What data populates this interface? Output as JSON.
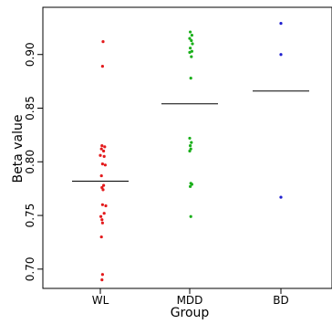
{
  "chart_data": {
    "type": "scatter",
    "xlabel": "Group",
    "ylabel": "Beta value",
    "categories": [
      "WL",
      "MDD",
      "BD"
    ],
    "y_ticks": [
      0.7,
      0.75,
      0.8,
      0.85,
      0.9
    ],
    "y_tick_labels": [
      "0.70",
      "0.75",
      "0.80",
      "0.85",
      "0.90"
    ],
    "ylim": [
      0.682,
      0.944
    ],
    "grid": false,
    "legend": "none",
    "series": [
      {
        "category": "WL",
        "color": "#e31a1c",
        "mean": 0.782,
        "points": [
          {
            "dx": 0.05,
            "y": 0.912
          },
          {
            "dx": 0.04,
            "y": 0.889
          },
          {
            "dx": 0.03,
            "y": 0.815
          },
          {
            "dx": 0.08,
            "y": 0.814
          },
          {
            "dx": 0.02,
            "y": 0.812
          },
          {
            "dx": 0.06,
            "y": 0.81
          },
          {
            "dx": 0.0,
            "y": 0.806
          },
          {
            "dx": 0.07,
            "y": 0.805
          },
          {
            "dx": 0.04,
            "y": 0.798
          },
          {
            "dx": 0.09,
            "y": 0.797
          },
          {
            "dx": 0.02,
            "y": 0.787
          },
          {
            "dx": 0.06,
            "y": 0.778
          },
          {
            "dx": 0.03,
            "y": 0.776
          },
          {
            "dx": 0.05,
            "y": 0.774
          },
          {
            "dx": 0.04,
            "y": 0.76
          },
          {
            "dx": 0.1,
            "y": 0.759
          },
          {
            "dx": 0.07,
            "y": 0.752
          },
          {
            "dx": 0.01,
            "y": 0.749
          },
          {
            "dx": 0.03,
            "y": 0.746
          },
          {
            "dx": 0.04,
            "y": 0.743
          },
          {
            "dx": 0.02,
            "y": 0.73
          },
          {
            "dx": 0.04,
            "y": 0.695
          },
          {
            "dx": 0.03,
            "y": 0.69
          }
        ]
      },
      {
        "category": "MDD",
        "color": "#1aaf1a",
        "mean": 0.854,
        "points": [
          {
            "dx": 0.01,
            "y": 0.921
          },
          {
            "dx": 0.04,
            "y": 0.918
          },
          {
            "dx": 0.0,
            "y": 0.915
          },
          {
            "dx": 0.03,
            "y": 0.913
          },
          {
            "dx": 0.05,
            "y": 0.91
          },
          {
            "dx": 0.01,
            "y": 0.906
          },
          {
            "dx": 0.04,
            "y": 0.903
          },
          {
            "dx": 0.0,
            "y": 0.902
          },
          {
            "dx": 0.03,
            "y": 0.898
          },
          {
            "dx": 0.02,
            "y": 0.878
          },
          {
            "dx": 0.0,
            "y": 0.822
          },
          {
            "dx": 0.03,
            "y": 0.818
          },
          {
            "dx": 0.01,
            "y": 0.815
          },
          {
            "dx": 0.02,
            "y": 0.812
          },
          {
            "dx": 0.0,
            "y": 0.81
          },
          {
            "dx": 0.02,
            "y": 0.78
          },
          {
            "dx": 0.04,
            "y": 0.779
          },
          {
            "dx": 0.01,
            "y": 0.777
          },
          {
            "dx": 0.02,
            "y": 0.749
          }
        ]
      },
      {
        "category": "BD",
        "color": "#1f1fcf",
        "mean": 0.866,
        "points": [
          {
            "dx": 0.0,
            "y": 0.929
          },
          {
            "dx": 0.0,
            "y": 0.9
          },
          {
            "dx": 0.0,
            "y": 0.767
          }
        ]
      }
    ]
  }
}
